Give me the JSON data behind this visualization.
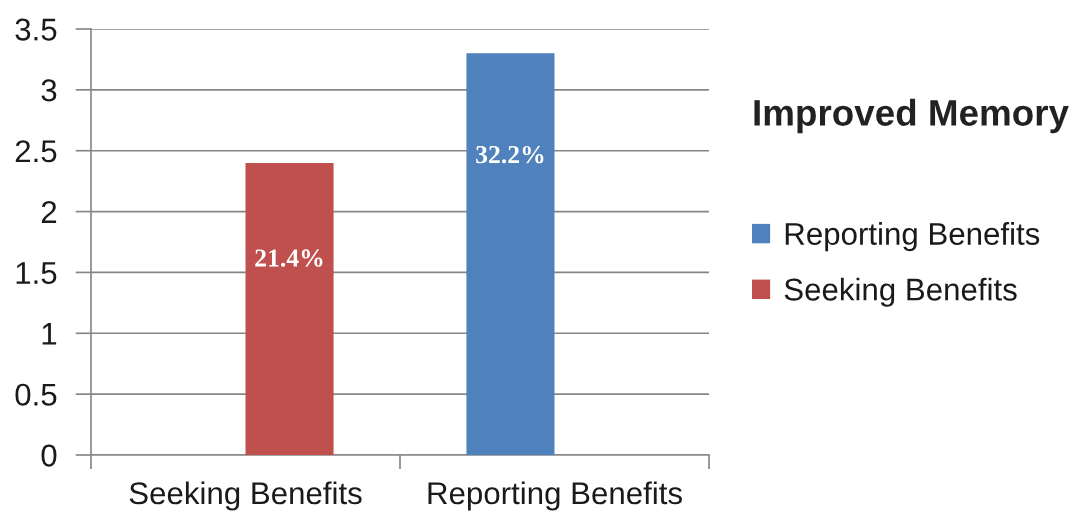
{
  "chart_data": {
    "type": "bar",
    "title": "Improved Memory",
    "categories": [
      "Seeking Benefits",
      "Reporting Benefits"
    ],
    "series": [
      {
        "name": "Reporting Benefits",
        "color": "#4f81bd",
        "values": [
          null,
          3.3
        ]
      },
      {
        "name": "Seeking Benefits",
        "color": "#c0504d",
        "values": [
          2.4,
          null
        ]
      }
    ],
    "annotations": [
      {
        "text": "21.4%",
        "x": "Seeking Benefits",
        "y": 1.6
      },
      {
        "text": "32.2%",
        "x": "Reporting Benefits",
        "y": 2.45
      }
    ],
    "ylim": [
      0,
      3.5
    ],
    "yticks": [
      0,
      0.5,
      1,
      1.5,
      2,
      2.5,
      3,
      3.5
    ],
    "grid": "y",
    "legend": "right"
  }
}
